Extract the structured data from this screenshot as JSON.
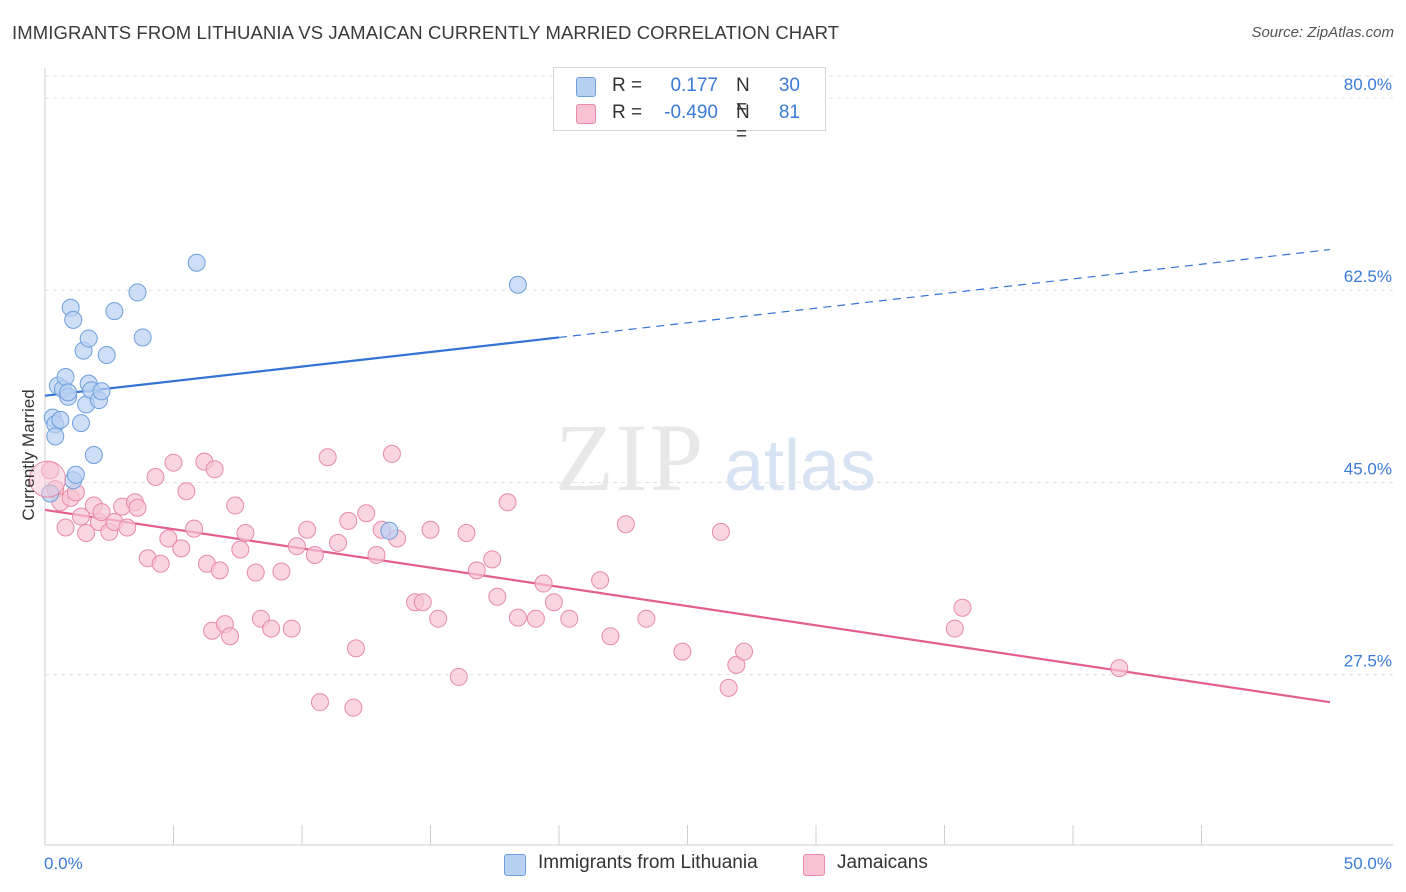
{
  "header": {
    "title": "IMMIGRANTS FROM LITHUANIA VS JAMAICAN CURRENTLY MARRIED CORRELATION CHART",
    "source": "Source: ZipAtlas.com"
  },
  "colors": {
    "blue_fill": "#b8d0f2",
    "blue_stroke": "#6e9fdc",
    "blue_line": "#3373d4",
    "pink_fill": "#f7c3d3",
    "pink_stroke": "#e88aa9",
    "pink_line": "#e35f8f",
    "tick_label": "#3a7bd5"
  },
  "legend": {
    "rows": [
      {
        "r_label": "R =",
        "r_value": "0.177",
        "n_label": "N =",
        "n_value": "30",
        "color": "blue"
      },
      {
        "r_label": "R =",
        "r_value": "-0.490",
        "n_label": "N =",
        "n_value": "81",
        "color": "pink"
      }
    ]
  },
  "bottom_legend": {
    "items": [
      {
        "label": "Immigrants from Lithuania",
        "color": "blue"
      },
      {
        "label": "Jamaicans",
        "color": "pink"
      }
    ]
  },
  "watermark": {
    "zip": "ZIP",
    "atlas": "atlas"
  },
  "chart_data": {
    "type": "scatter",
    "title": "IMMIGRANTS FROM LITHUANIA VS JAMAICAN CURRENTLY MARRIED CORRELATION CHART",
    "xlabel": "",
    "ylabel": "Currently Married",
    "xlim": [
      0,
      50
    ],
    "ylim": [
      12,
      82
    ],
    "x_tick_labels": [
      "0.0%",
      "50.0%"
    ],
    "y_ticks": [
      27.5,
      45.0,
      62.5,
      80.0
    ],
    "y_tick_labels": [
      "27.5%",
      "45.0%",
      "62.5%",
      "80.0%"
    ],
    "grid": true,
    "legend_position": "top-center",
    "series": [
      {
        "name": "Immigrants from Lithuania",
        "color": "blue",
        "points": [
          [
            0.3,
            50.9
          ],
          [
            0.4,
            50.3
          ],
          [
            0.4,
            49.2
          ],
          [
            0.5,
            53.8
          ],
          [
            0.6,
            50.7
          ],
          [
            0.7,
            53.5
          ],
          [
            0.8,
            54.6
          ],
          [
            0.9,
            52.8
          ],
          [
            1.0,
            60.9
          ],
          [
            1.1,
            59.8
          ],
          [
            1.1,
            45.2
          ],
          [
            1.2,
            45.7
          ],
          [
            1.4,
            50.4
          ],
          [
            1.5,
            57.0
          ],
          [
            1.6,
            52.1
          ],
          [
            1.7,
            54.0
          ],
          [
            1.7,
            58.1
          ],
          [
            1.8,
            53.4
          ],
          [
            1.9,
            47.5
          ],
          [
            2.1,
            52.5
          ],
          [
            2.2,
            53.3
          ],
          [
            2.4,
            56.6
          ],
          [
            2.7,
            60.6
          ],
          [
            3.6,
            62.3
          ],
          [
            3.8,
            58.2
          ],
          [
            5.9,
            65.0
          ],
          [
            0.2,
            44.0
          ],
          [
            0.9,
            53.2
          ],
          [
            13.4,
            40.6
          ],
          [
            18.4,
            63.0
          ]
        ],
        "trend": {
          "x": [
            0,
            20
          ],
          "y": [
            52.9,
            58.2
          ],
          "dashed_to": [
            50,
            66.2
          ]
        }
      },
      {
        "name": "Jamaicans",
        "color": "pink",
        "points": [
          [
            0.2,
            46.1
          ],
          [
            0.4,
            44.4
          ],
          [
            0.6,
            43.2
          ],
          [
            0.8,
            40.9
          ],
          [
            1.0,
            43.6
          ],
          [
            1.2,
            44.1
          ],
          [
            1.4,
            41.9
          ],
          [
            1.6,
            40.4
          ],
          [
            1.9,
            42.9
          ],
          [
            2.1,
            41.4
          ],
          [
            2.2,
            42.3
          ],
          [
            2.5,
            40.5
          ],
          [
            2.7,
            41.4
          ],
          [
            3.0,
            42.8
          ],
          [
            3.2,
            40.9
          ],
          [
            3.5,
            43.2
          ],
          [
            3.6,
            42.7
          ],
          [
            4.0,
            38.1
          ],
          [
            4.3,
            45.5
          ],
          [
            4.5,
            37.6
          ],
          [
            4.8,
            39.9
          ],
          [
            5.0,
            46.8
          ],
          [
            5.3,
            39.0
          ],
          [
            5.5,
            44.2
          ],
          [
            5.8,
            40.8
          ],
          [
            6.2,
            46.9
          ],
          [
            6.3,
            37.6
          ],
          [
            6.5,
            31.5
          ],
          [
            6.6,
            46.2
          ],
          [
            6.8,
            37.0
          ],
          [
            7.0,
            32.1
          ],
          [
            7.2,
            31.0
          ],
          [
            7.4,
            42.9
          ],
          [
            7.6,
            38.9
          ],
          [
            7.8,
            40.4
          ],
          [
            8.2,
            36.8
          ],
          [
            8.4,
            32.6
          ],
          [
            8.8,
            31.7
          ],
          [
            9.2,
            36.9
          ],
          [
            9.6,
            31.7
          ],
          [
            9.8,
            39.2
          ],
          [
            10.2,
            40.7
          ],
          [
            10.5,
            38.4
          ],
          [
            10.7,
            25.0
          ],
          [
            11.0,
            47.3
          ],
          [
            11.4,
            39.5
          ],
          [
            11.8,
            41.5
          ],
          [
            12.1,
            29.9
          ],
          [
            12.5,
            42.2
          ],
          [
            12.9,
            38.4
          ],
          [
            13.1,
            40.7
          ],
          [
            13.5,
            47.6
          ],
          [
            13.7,
            39.9
          ],
          [
            14.4,
            34.1
          ],
          [
            14.7,
            34.1
          ],
          [
            15.0,
            40.7
          ],
          [
            15.3,
            32.6
          ],
          [
            16.1,
            27.3
          ],
          [
            16.4,
            40.4
          ],
          [
            16.8,
            37.0
          ],
          [
            17.4,
            38.0
          ],
          [
            17.6,
            34.6
          ],
          [
            18.0,
            43.2
          ],
          [
            18.4,
            32.7
          ],
          [
            19.1,
            32.6
          ],
          [
            19.4,
            35.8
          ],
          [
            19.8,
            34.1
          ],
          [
            20.4,
            32.6
          ],
          [
            21.6,
            36.1
          ],
          [
            22.0,
            31.0
          ],
          [
            22.6,
            41.2
          ],
          [
            23.4,
            32.6
          ],
          [
            26.3,
            40.5
          ],
          [
            26.6,
            26.3
          ],
          [
            26.9,
            28.4
          ],
          [
            27.2,
            29.6
          ],
          [
            35.4,
            31.7
          ],
          [
            35.7,
            33.6
          ],
          [
            41.8,
            28.1
          ],
          [
            24.8,
            29.6
          ],
          [
            12.0,
            24.5
          ]
        ],
        "trend": {
          "x": [
            0,
            50
          ],
          "y": [
            42.5,
            25.0
          ]
        }
      }
    ]
  }
}
